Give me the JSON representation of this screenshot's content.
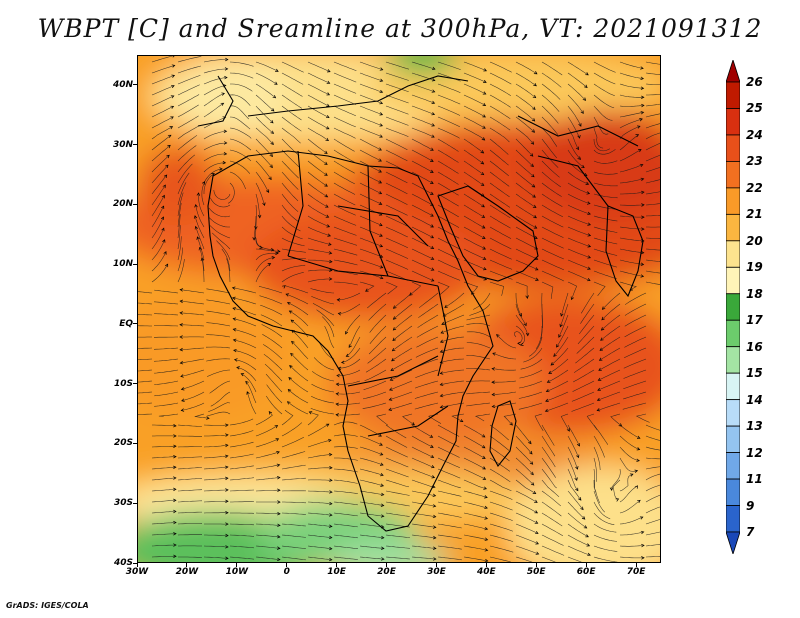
{
  "title": "WBPT [C] and Sreamline at 300hPa, VT: 2021091312",
  "credit": "GrADS: IGES/COLA",
  "map": {
    "lon_range": [
      -30,
      75
    ],
    "lat_range": [
      -40,
      45
    ],
    "x_ticks": [
      "30W",
      "20W",
      "10W",
      "0",
      "10E",
      "20E",
      "30E",
      "40E",
      "50E",
      "60E",
      "70E"
    ],
    "x_tick_values": [
      -30,
      -20,
      -10,
      0,
      10,
      20,
      30,
      40,
      50,
      60,
      70
    ],
    "y_ticks": [
      "40N",
      "30N",
      "20N",
      "10N",
      "EQ",
      "10S",
      "20S",
      "30S",
      "40S"
    ],
    "y_tick_values": [
      40,
      30,
      20,
      10,
      0,
      -10,
      -20,
      -30,
      -40
    ],
    "overlay": "streamlines",
    "base_layer": "coastlines and country boundaries"
  },
  "colorbar": {
    "labels": [
      "26",
      "25",
      "24",
      "23",
      "22",
      "21",
      "20",
      "19",
      "18",
      "17",
      "16",
      "15",
      "14",
      "13",
      "12",
      "11",
      "9",
      "7"
    ],
    "colors": [
      "#a00000",
      "#c01a00",
      "#d93010",
      "#e8501a",
      "#f27020",
      "#f99a28",
      "#fbb640",
      "#fde38e",
      "#fff4b8",
      "#3aa83a",
      "#6ccc6c",
      "#a4e4a4",
      "#d8f4f4",
      "#b8dcf8",
      "#94c4f0",
      "#70a8e8",
      "#4a88dc",
      "#2a64cc",
      "#1a48b8"
    ]
  }
}
